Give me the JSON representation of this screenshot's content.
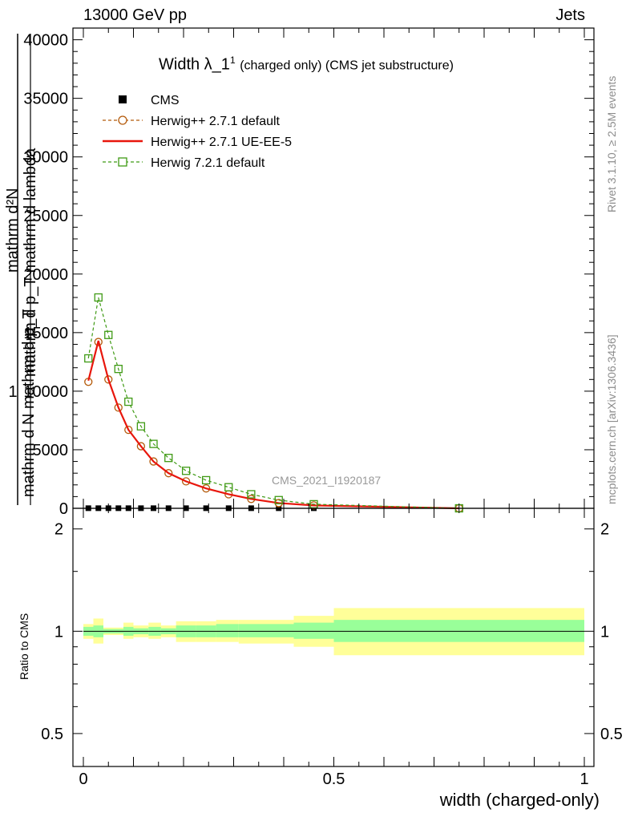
{
  "header": {
    "left": "13000 GeV pp",
    "right": "Jets"
  },
  "side_text": {
    "rivet": "Rivet 3.1.10, ≥ 2.5M events",
    "mcplots": "mcplots.cern.ch [arXiv:1306.3436]"
  },
  "chart_data": [
    {
      "type": "line",
      "title": "Width λ_1¹ (charged only) (CMS jet substructure)",
      "title_main": "Width λ_1",
      "title_sup": "1",
      "title_rest": "(charged only) (CMS jet substructure)",
      "watermark": "CMS_2021_I1920187",
      "ylabel_lines": [
        "1",
        "mathrm d N",
        "mathrm d p",
        "mathrm d N",
        "mathrm d p",
        "mathrm d p",
        "mathrm d lambda"
      ],
      "ylabel_top": "mathrm d²N",
      "ylabel_mid": "mathrm d p_T mathrm d lambda",
      "ylabel_bot": "mathrm d N mathrm d p_T",
      "ylim": [
        0,
        41000
      ],
      "xlim": [
        0,
        1
      ],
      "y_ticks": [
        0,
        5000,
        10000,
        15000,
        20000,
        25000,
        30000,
        35000,
        40000
      ],
      "y_tick_labels": [
        "0",
        "5000",
        "10000",
        "15000",
        "20000",
        "25000",
        "30000",
        "35000",
        "40000"
      ],
      "legend": [
        {
          "name": "CMS",
          "color": "#000000",
          "marker": "square-filled",
          "line": "none"
        },
        {
          "name": "Herwig++ 2.7.1 default",
          "color": "#b45a0a",
          "marker": "circle-open",
          "line": "dashed"
        },
        {
          "name": "Herwig++ 2.7.1 UE-EE-5",
          "color": "#e8160c",
          "marker": "none",
          "line": "solid"
        },
        {
          "name": "Herwig 7.2.1 default",
          "color": "#3f9a14",
          "marker": "square-open",
          "line": "dashed"
        }
      ],
      "series": [
        {
          "name": "CMS",
          "x": [
            0.01,
            0.03,
            0.05,
            0.07,
            0.09,
            0.115,
            0.14,
            0.17,
            0.205,
            0.245,
            0.29,
            0.335,
            0.39,
            0.46,
            0.75
          ],
          "y": [
            10,
            10,
            10,
            10,
            10,
            10,
            10,
            10,
            10,
            10,
            10,
            10,
            10,
            10,
            10
          ]
        },
        {
          "name": "Herwig++ 2.7.1 default",
          "x": [
            0.01,
            0.03,
            0.05,
            0.07,
            0.09,
            0.115,
            0.14,
            0.17,
            0.205,
            0.245,
            0.29,
            0.335,
            0.39,
            0.46,
            0.75
          ],
          "y": [
            10800,
            14200,
            11000,
            8600,
            6700,
            5300,
            4000,
            3000,
            2300,
            1700,
            1200,
            800,
            450,
            250,
            0
          ]
        },
        {
          "name": "Herwig++ 2.7.1 UE-EE-5",
          "x": [
            0.01,
            0.03,
            0.05,
            0.07,
            0.09,
            0.115,
            0.14,
            0.17,
            0.205,
            0.245,
            0.29,
            0.335,
            0.39,
            0.46,
            0.75
          ],
          "y": [
            10900,
            14300,
            11000,
            8600,
            6700,
            5300,
            4000,
            3000,
            2300,
            1700,
            1200,
            800,
            450,
            250,
            0
          ]
        },
        {
          "name": "Herwig 7.2.1 default",
          "x": [
            0.01,
            0.03,
            0.05,
            0.07,
            0.09,
            0.115,
            0.14,
            0.17,
            0.205,
            0.245,
            0.29,
            0.335,
            0.39,
            0.46,
            0.75
          ],
          "y": [
            12800,
            18000,
            14800,
            11900,
            9100,
            7000,
            5500,
            4300,
            3200,
            2400,
            1800,
            1200,
            700,
            350,
            0
          ]
        }
      ]
    },
    {
      "type": "area",
      "ylabel": "Ratio to CMS",
      "xlabel": "width (charged-only)",
      "xlim": [
        0,
        1
      ],
      "ylim": [
        0.4,
        2.3
      ],
      "log_scale_y": true,
      "x_ticks": [
        0,
        0.5,
        1
      ],
      "x_tick_labels": [
        "0",
        "0.5",
        "1"
      ],
      "y_ticks": [
        0.5,
        1,
        2
      ],
      "y_tick_labels": [
        "0.5",
        "1",
        "2"
      ],
      "band_colors": {
        "inner": "#99ff99",
        "outer": "#ffff99"
      },
      "bins": [
        {
          "x_lo": 0.0,
          "x_hi": 0.02,
          "inner": [
            0.97,
            1.03
          ],
          "outer": [
            0.95,
            1.05
          ]
        },
        {
          "x_lo": 0.02,
          "x_hi": 0.04,
          "inner": [
            0.96,
            1.04
          ],
          "outer": [
            0.92,
            1.09
          ]
        },
        {
          "x_lo": 0.04,
          "x_hi": 0.06,
          "inner": [
            0.985,
            1.015
          ],
          "outer": [
            0.975,
            1.025
          ]
        },
        {
          "x_lo": 0.06,
          "x_hi": 0.08,
          "inner": [
            0.985,
            1.015
          ],
          "outer": [
            0.975,
            1.025
          ]
        },
        {
          "x_lo": 0.08,
          "x_hi": 0.1,
          "inner": [
            0.97,
            1.03
          ],
          "outer": [
            0.95,
            1.06
          ]
        },
        {
          "x_lo": 0.1,
          "x_hi": 0.13,
          "inner": [
            0.98,
            1.02
          ],
          "outer": [
            0.96,
            1.04
          ]
        },
        {
          "x_lo": 0.13,
          "x_hi": 0.155,
          "inner": [
            0.97,
            1.03
          ],
          "outer": [
            0.95,
            1.06
          ]
        },
        {
          "x_lo": 0.155,
          "x_hi": 0.185,
          "inner": [
            0.98,
            1.02
          ],
          "outer": [
            0.96,
            1.04
          ]
        },
        {
          "x_lo": 0.185,
          "x_hi": 0.225,
          "inner": [
            0.96,
            1.04
          ],
          "outer": [
            0.93,
            1.07
          ]
        },
        {
          "x_lo": 0.225,
          "x_hi": 0.265,
          "inner": [
            0.96,
            1.04
          ],
          "outer": [
            0.93,
            1.07
          ]
        },
        {
          "x_lo": 0.265,
          "x_hi": 0.31,
          "inner": [
            0.96,
            1.05
          ],
          "outer": [
            0.93,
            1.08
          ]
        },
        {
          "x_lo": 0.31,
          "x_hi": 0.36,
          "inner": [
            0.96,
            1.05
          ],
          "outer": [
            0.92,
            1.08
          ]
        },
        {
          "x_lo": 0.36,
          "x_hi": 0.42,
          "inner": [
            0.96,
            1.05
          ],
          "outer": [
            0.92,
            1.08
          ]
        },
        {
          "x_lo": 0.42,
          "x_hi": 0.5,
          "inner": [
            0.95,
            1.06
          ],
          "outer": [
            0.9,
            1.11
          ]
        },
        {
          "x_lo": 0.5,
          "x_hi": 1.0,
          "inner": [
            0.93,
            1.08
          ],
          "outer": [
            0.85,
            1.17
          ]
        }
      ]
    }
  ]
}
